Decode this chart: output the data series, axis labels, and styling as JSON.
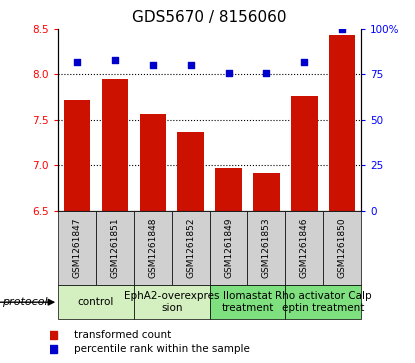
{
  "title": "GDS5670 / 8156060",
  "samples": [
    "GSM1261847",
    "GSM1261851",
    "GSM1261848",
    "GSM1261852",
    "GSM1261849",
    "GSM1261853",
    "GSM1261846",
    "GSM1261850"
  ],
  "transformed_count": [
    7.72,
    7.95,
    7.56,
    7.37,
    6.97,
    6.91,
    7.76,
    8.43
  ],
  "percentile_rank": [
    82,
    83,
    80,
    80,
    76,
    76,
    82,
    100
  ],
  "ylim_left": [
    6.5,
    8.5
  ],
  "ylim_right": [
    0,
    100
  ],
  "yticks_left": [
    6.5,
    7.0,
    7.5,
    8.0,
    8.5
  ],
  "yticks_right": [
    0,
    25,
    50,
    75,
    100
  ],
  "ytick_right_labels": [
    "0",
    "25",
    "50",
    "75",
    "100%"
  ],
  "protocols": [
    {
      "label": "control",
      "span": [
        0,
        2
      ],
      "color": "#d4f0c0"
    },
    {
      "label": "EphA2-overexpres\nsion",
      "span": [
        2,
        4
      ],
      "color": "#d4f0c0"
    },
    {
      "label": "llomastat\ntreatment",
      "span": [
        4,
        6
      ],
      "color": "#7fe07f"
    },
    {
      "label": "Rho activator Calp\neptin treatment",
      "span": [
        6,
        8
      ],
      "color": "#7fe07f"
    }
  ],
  "bar_color": "#cc1100",
  "dot_color": "#0000cc",
  "sample_cell_color": "#d0d0d0",
  "bar_base": 6.5,
  "gridlines": [
    7.0,
    7.5,
    8.0
  ],
  "title_fontsize": 11,
  "tick_fontsize": 7.5,
  "sample_fontsize": 6.5,
  "protocol_fontsize": 7.5,
  "legend_fontsize": 7.5
}
